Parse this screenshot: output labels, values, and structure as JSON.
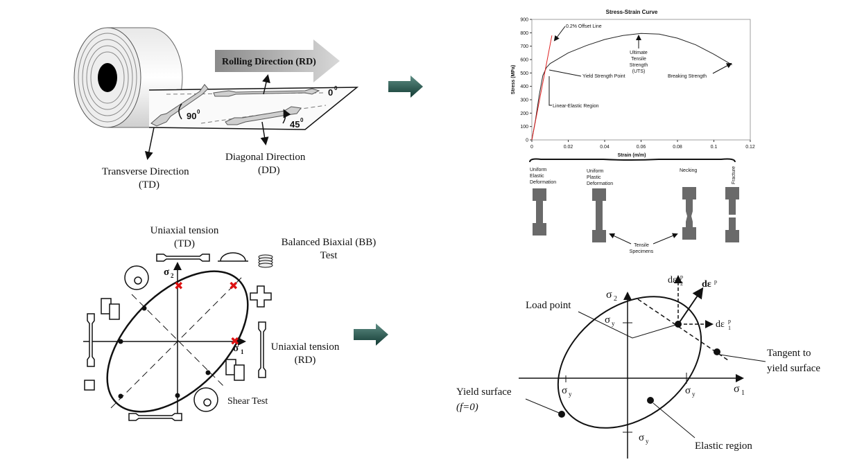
{
  "rolling": {
    "rd_label": "Rolling Direction (RD)",
    "angle_0": "0",
    "angle_45": "45",
    "angle_90": "90",
    "degree": "0",
    "dd_line1": "Diagonal Direction",
    "dd_line2": "(DD)",
    "td_line1": "Transverse Direction",
    "td_line2": "(TD)"
  },
  "stress_strain": {
    "ylabel": "Stress (MPa)",
    "xlabel": "Strain (m/m)",
    "offset_line": "0.2% Offset Line",
    "yield_point": "Yield Strength Point",
    "linear_region": "Linear-Elastic Region",
    "uts1": "Ultimate",
    "uts2": "Tensile",
    "uts3": "Strength",
    "uts4": "(UTS)",
    "breaking": "Breaking Strength",
    "stage1a": "Uniform",
    "stage1b": "Elastic",
    "stage1c": "Deformation",
    "stage2a": "Uniform",
    "stage2b": "Plastic",
    "stage2c": "Deformation",
    "stage3": "Necking",
    "stage4": "Fracture",
    "specimens1": "Tensile",
    "specimens2": "Specimens"
  },
  "chart_data": {
    "type": "line",
    "title": "Stress-Strain Curve",
    "xlabel": "Strain (m/m)",
    "ylabel": "Stress (MPa)",
    "xlim": [
      0,
      0.12
    ],
    "ylim": [
      0,
      900
    ],
    "x_ticks": [
      "0",
      "0.02",
      "0.04",
      "0.06",
      "0.08",
      "0.1",
      "0.12"
    ],
    "y_ticks": [
      "0",
      "100",
      "200",
      "300",
      "400",
      "500",
      "600",
      "700",
      "800",
      "900"
    ],
    "series": [
      {
        "x": [
          0,
          0.002,
          0.004,
          0.006,
          0.008,
          0.01,
          0.015,
          0.02,
          0.03,
          0.04,
          0.05,
          0.06,
          0.07,
          0.08,
          0.09,
          0.1,
          0.11
        ],
        "y": [
          0,
          150,
          330,
          480,
          540,
          570,
          610,
          650,
          705,
          750,
          780,
          795,
          790,
          760,
          710,
          640,
          560
        ]
      },
      {
        "x": [
          0.0,
          0.011
        ],
        "y": [
          0,
          780
        ]
      }
    ]
  },
  "yield_map": {
    "ut_td1": "Uniaxial tension",
    "ut_td2": "(TD)",
    "bb1": "Balanced Biaxial (BB)",
    "bb2": "Test",
    "ut_rd1": "Uniaxial tension",
    "ut_rd2": "(RD)",
    "shear": "Shear Test",
    "sigma2": "σ",
    "sub2": "2",
    "sigma1": "σ",
    "sub1": "1"
  },
  "yield_surface": {
    "load_point": "Load point",
    "tangent1": "Tangent to",
    "tangent2": "yield surface",
    "ys1": "Yield surface",
    "ys2": "(f=0)",
    "elastic": "Elastic region",
    "sigma_y": "σ",
    "sub_y": "y",
    "sigma1": "σ",
    "sub1": "1",
    "sigma2": "σ",
    "sub2": "2",
    "de": "dε",
    "de_p": "p",
    "de1": "dε",
    "de2": "dε",
    "p": "p",
    "one": "1",
    "two": "2"
  }
}
